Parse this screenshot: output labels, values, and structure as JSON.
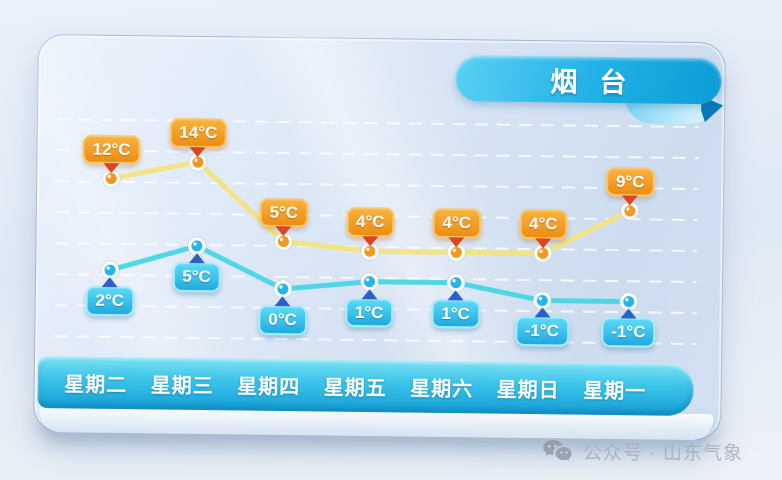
{
  "header": {
    "title": "烟台"
  },
  "chart_data": {
    "type": "line",
    "title": "烟台",
    "unit": "°C",
    "categories": [
      "星期二",
      "星期三",
      "星期四",
      "星期五",
      "星期六",
      "星期日",
      "星期一"
    ],
    "series": [
      {
        "name": "high",
        "values": [
          12,
          14,
          5,
          4,
          4,
          4,
          9
        ],
        "line_color": "#f3e47c",
        "point_color": "#f2971f",
        "badge_color": "#f09018",
        "pointer_color": "#d8471f"
      },
      {
        "name": "low",
        "values": [
          2,
          5,
          0,
          1,
          1,
          -1,
          -1
        ],
        "line_color": "#48d5e4",
        "point_color": "#27b4e8",
        "badge_color": "#27ade1",
        "pointer_color": "#2a5ec8"
      }
    ],
    "xlabel": "",
    "ylabel": "",
    "ylim": [
      -4,
      16
    ],
    "legend": "none",
    "grid": "horizontal-dashed"
  },
  "footer": {
    "watermark": "公众号 · 山东气象"
  },
  "colors": {
    "bar": "#1aa7da",
    "ribbon": "#16a9e1",
    "card_bg": "#d9e5f4",
    "grid": "#ffffff",
    "watermark_text": "#a9b1bb"
  }
}
